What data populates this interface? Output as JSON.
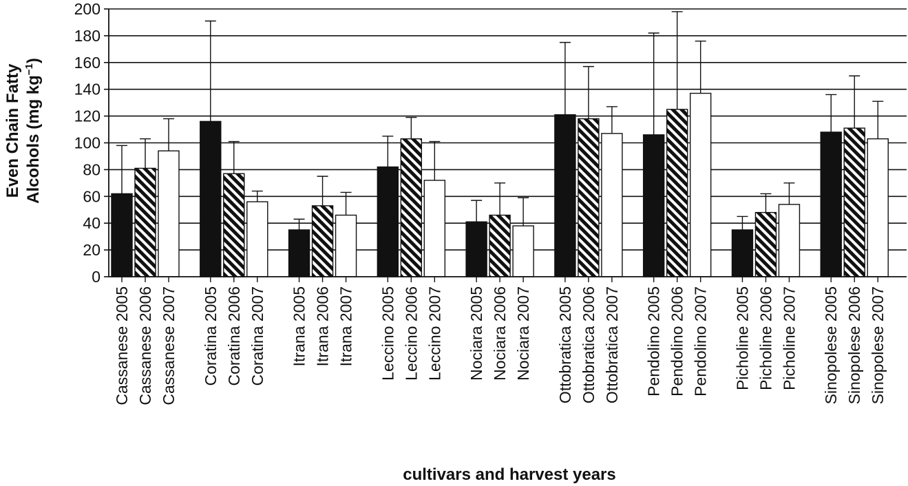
{
  "chart_data": {
    "type": "bar",
    "ylabel_line1": "Even Chain Fatty",
    "ylabel_line2_main": "Alcohols (mg kg",
    "ylabel_line2_sup": "−1",
    "ylabel_line2_end": ")",
    "xlabel": "cultivars and harvest years",
    "ylim": [
      0,
      200
    ],
    "yticks": [
      0,
      20,
      40,
      60,
      80,
      100,
      120,
      140,
      160,
      180,
      200
    ],
    "grid": true,
    "groups": [
      {
        "cultivar": "Cassanese",
        "bars": [
          {
            "label": "Cassanese 2005",
            "year": "2005",
            "value": 62,
            "error": 98
          },
          {
            "label": "Cassanese 2006",
            "year": "2006",
            "value": 81,
            "error": 103
          },
          {
            "label": "Cassanese 2007",
            "year": "2007",
            "value": 94,
            "error": 118
          }
        ]
      },
      {
        "cultivar": "Coratina",
        "bars": [
          {
            "label": "Coratina 2005",
            "year": "2005",
            "value": 116,
            "error": 191
          },
          {
            "label": "Coratina 2006",
            "year": "2006",
            "value": 77,
            "error": 101
          },
          {
            "label": "Coratina 2007",
            "year": "2007",
            "value": 56,
            "error": 64
          }
        ]
      },
      {
        "cultivar": "Itrana",
        "bars": [
          {
            "label": "Itrana 2005",
            "year": "2005",
            "value": 35,
            "error": 43
          },
          {
            "label": "Itrana 2006",
            "year": "2006",
            "value": 53,
            "error": 75
          },
          {
            "label": "Itrana 2007",
            "year": "2007",
            "value": 46,
            "error": 63
          }
        ]
      },
      {
        "cultivar": "Leccino",
        "bars": [
          {
            "label": "Leccino 2005",
            "year": "2005",
            "value": 82,
            "error": 105
          },
          {
            "label": "Leccino 2006",
            "year": "2006",
            "value": 103,
            "error": 119
          },
          {
            "label": "Leccino 2007",
            "year": "2007",
            "value": 72,
            "error": 101
          }
        ]
      },
      {
        "cultivar": "Nociara",
        "bars": [
          {
            "label": "Nociara 2005",
            "year": "2005",
            "value": 41,
            "error": 57
          },
          {
            "label": "Nociara 2006",
            "year": "2006",
            "value": 46,
            "error": 70
          },
          {
            "label": "Nociara 2007",
            "year": "2007",
            "value": 38,
            "error": 59
          }
        ]
      },
      {
        "cultivar": "Ottobratica",
        "bars": [
          {
            "label": "Ottobratica 2005",
            "year": "2005",
            "value": 121,
            "error": 175
          },
          {
            "label": "Ottobratica 2006",
            "year": "2006",
            "value": 118,
            "error": 157
          },
          {
            "label": "Ottobratica 2007",
            "year": "2007",
            "value": 107,
            "error": 127
          }
        ]
      },
      {
        "cultivar": "Pendolino",
        "bars": [
          {
            "label": "Pendolino 2005",
            "year": "2005",
            "value": 106,
            "error": 182
          },
          {
            "label": "Pendolino 2006",
            "year": "2006",
            "value": 125,
            "error": 198
          },
          {
            "label": "Pendolino 2007",
            "year": "2007",
            "value": 137,
            "error": 176
          }
        ]
      },
      {
        "cultivar": "Picholine",
        "bars": [
          {
            "label": "Picholine 2005",
            "year": "2005",
            "value": 35,
            "error": 45
          },
          {
            "label": "Picholine 2006",
            "year": "2006",
            "value": 48,
            "error": 62
          },
          {
            "label": "Picholine 2007",
            "year": "2007",
            "value": 54,
            "error": 70
          }
        ]
      },
      {
        "cultivar": "Sinopolese",
        "bars": [
          {
            "label": "Sinopolese 2005",
            "year": "2005",
            "value": 108,
            "error": 136
          },
          {
            "label": "Sinopolese 2006",
            "year": "2006",
            "value": 111,
            "error": 150
          },
          {
            "label": "Sinopolese 2007",
            "year": "2007",
            "value": 103,
            "error": 131
          }
        ]
      }
    ],
    "fills": {
      "2005": "solid-black",
      "2006": "diagonal-hatch",
      "2007": "white"
    },
    "colors": {
      "solid": "#111111",
      "hatch_stripe": "#111111",
      "outline": "#111111",
      "white": "#ffffff"
    }
  }
}
